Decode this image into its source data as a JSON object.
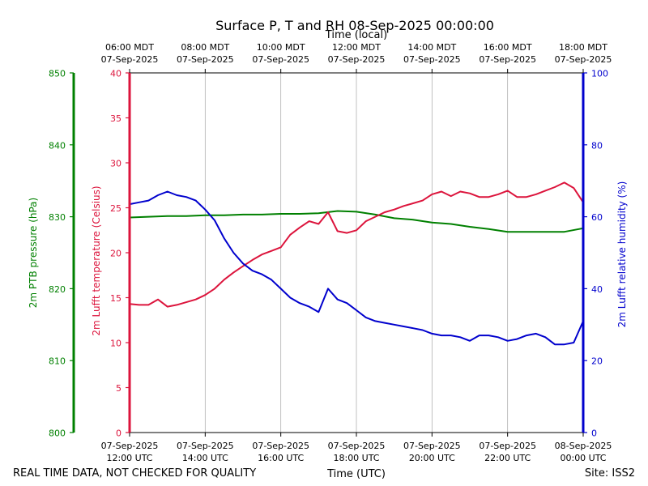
{
  "chart_data": {
    "type": "line",
    "title": "Surface P, T and RH 08-Sep-2025 00:00:00",
    "xlabel": "Time (UTC)",
    "x2label": "Time (local)",
    "xlim_hours": [
      12,
      24
    ],
    "x_ticks_bottom": [
      {
        "hour": 12,
        "date": "07-Sep-2025",
        "time": "12:00 UTC"
      },
      {
        "hour": 14,
        "date": "07-Sep-2025",
        "time": "14:00 UTC"
      },
      {
        "hour": 16,
        "date": "07-Sep-2025",
        "time": "16:00 UTC"
      },
      {
        "hour": 18,
        "date": "07-Sep-2025",
        "time": "18:00 UTC"
      },
      {
        "hour": 20,
        "date": "07-Sep-2025",
        "time": "20:00 UTC"
      },
      {
        "hour": 22,
        "date": "07-Sep-2025",
        "time": "22:00 UTC"
      },
      {
        "hour": 24,
        "date": "08-Sep-2025",
        "time": "00:00 UTC"
      }
    ],
    "x_ticks_top": [
      {
        "hour": 12,
        "time": "06:00 MDT",
        "date": "07-Sep-2025"
      },
      {
        "hour": 14,
        "time": "08:00 MDT",
        "date": "07-Sep-2025"
      },
      {
        "hour": 16,
        "time": "10:00 MDT",
        "date": "07-Sep-2025"
      },
      {
        "hour": 18,
        "time": "12:00 MDT",
        "date": "07-Sep-2025"
      },
      {
        "hour": 20,
        "time": "14:00 MDT",
        "date": "07-Sep-2025"
      },
      {
        "hour": 22,
        "time": "16:00 MDT",
        "date": "07-Sep-2025"
      },
      {
        "hour": 24,
        "time": "18:00 MDT",
        "date": "07-Sep-2025"
      }
    ],
    "axes": {
      "pressure": {
        "label": "2m PTB pressure (hPa)",
        "ylim": [
          800,
          850
        ],
        "ticks": [
          800,
          810,
          820,
          830,
          840,
          850
        ],
        "color": "#008000"
      },
      "temperature": {
        "label": "2m Lufft temperature (Celsius)",
        "ylim": [
          0,
          40
        ],
        "ticks": [
          0,
          5,
          10,
          15,
          20,
          25,
          30,
          35,
          40
        ],
        "color": "#dc143c"
      },
      "humidity": {
        "label": "2m Lufft relative humidity (%)",
        "ylim": [
          0,
          100
        ],
        "ticks": [
          0,
          20,
          40,
          60,
          80,
          100
        ],
        "color": "#0000cd"
      }
    },
    "series": [
      {
        "name": "2m PTB pressure (hPa)",
        "axis": "pressure",
        "color": "#008000",
        "x": [
          12.0,
          12.5,
          13.0,
          13.5,
          14.0,
          14.5,
          15.0,
          15.5,
          16.0,
          16.5,
          17.0,
          17.5,
          18.0,
          18.5,
          19.0,
          19.5,
          20.0,
          20.5,
          21.0,
          21.5,
          22.0,
          22.5,
          23.0,
          23.5,
          24.0
        ],
        "values": [
          829.9,
          830.0,
          830.1,
          830.1,
          830.2,
          830.2,
          830.3,
          830.3,
          830.4,
          830.4,
          830.5,
          830.8,
          830.7,
          830.3,
          829.8,
          829.6,
          829.2,
          829.0,
          828.6,
          828.3,
          827.9,
          827.9,
          827.9,
          827.9,
          828.4
        ]
      },
      {
        "name": "2m Lufft temperature (Celsius)",
        "axis": "temperature",
        "color": "#dc143c",
        "x": [
          12.0,
          12.25,
          12.5,
          12.75,
          13.0,
          13.25,
          13.5,
          13.75,
          14.0,
          14.25,
          14.5,
          14.75,
          15.0,
          15.25,
          15.5,
          15.75,
          16.0,
          16.25,
          16.5,
          16.75,
          17.0,
          17.25,
          17.5,
          17.75,
          18.0,
          18.25,
          18.5,
          18.75,
          19.0,
          19.25,
          19.5,
          19.75,
          20.0,
          20.25,
          20.5,
          20.75,
          21.0,
          21.25,
          21.5,
          21.75,
          22.0,
          22.25,
          22.5,
          22.75,
          23.0,
          23.25,
          23.5,
          23.75,
          24.0
        ],
        "values": [
          14.3,
          14.2,
          14.2,
          14.8,
          14.0,
          14.2,
          14.5,
          14.8,
          15.3,
          16.0,
          17.0,
          17.8,
          18.5,
          19.2,
          19.8,
          20.2,
          20.6,
          22.0,
          22.8,
          23.5,
          23.2,
          24.5,
          22.4,
          22.2,
          22.5,
          23.5,
          24.0,
          24.5,
          24.8,
          25.2,
          25.5,
          25.8,
          26.5,
          26.8,
          26.3,
          26.8,
          26.6,
          26.2,
          26.2,
          26.5,
          26.9,
          26.2,
          26.2,
          26.5,
          26.9,
          27.3,
          27.8,
          27.2,
          25.6
        ]
      },
      {
        "name": "2m Lufft relative humidity (%)",
        "axis": "humidity",
        "color": "#0000cd",
        "x": [
          12.0,
          12.25,
          12.5,
          12.75,
          13.0,
          13.25,
          13.5,
          13.75,
          14.0,
          14.25,
          14.5,
          14.75,
          15.0,
          15.25,
          15.5,
          15.75,
          16.0,
          16.25,
          16.5,
          16.75,
          17.0,
          17.25,
          17.5,
          17.75,
          18.0,
          18.25,
          18.5,
          18.75,
          19.0,
          19.25,
          19.5,
          19.75,
          20.0,
          20.25,
          20.5,
          20.75,
          21.0,
          21.25,
          21.5,
          21.75,
          22.0,
          22.25,
          22.5,
          22.75,
          23.0,
          23.25,
          23.5,
          23.75,
          24.0
        ],
        "values": [
          63.5,
          64.0,
          64.5,
          66.0,
          67.0,
          66.0,
          65.5,
          64.5,
          62.0,
          59.0,
          54.0,
          50.0,
          47.0,
          45.0,
          44.0,
          42.5,
          40.0,
          37.5,
          36.0,
          35.0,
          33.5,
          40.0,
          37.0,
          36.0,
          34.0,
          32.0,
          31.0,
          30.5,
          30.0,
          29.5,
          29.0,
          28.5,
          27.5,
          27.0,
          27.0,
          26.5,
          25.5,
          27.0,
          27.0,
          26.5,
          25.5,
          26.0,
          27.0,
          27.5,
          26.5,
          24.5,
          24.5,
          25.0,
          31.0
        ]
      }
    ]
  },
  "footer": {
    "left_note": "REAL TIME DATA, NOT CHECKED FOR QUALITY",
    "site": "Site: ISS2"
  }
}
